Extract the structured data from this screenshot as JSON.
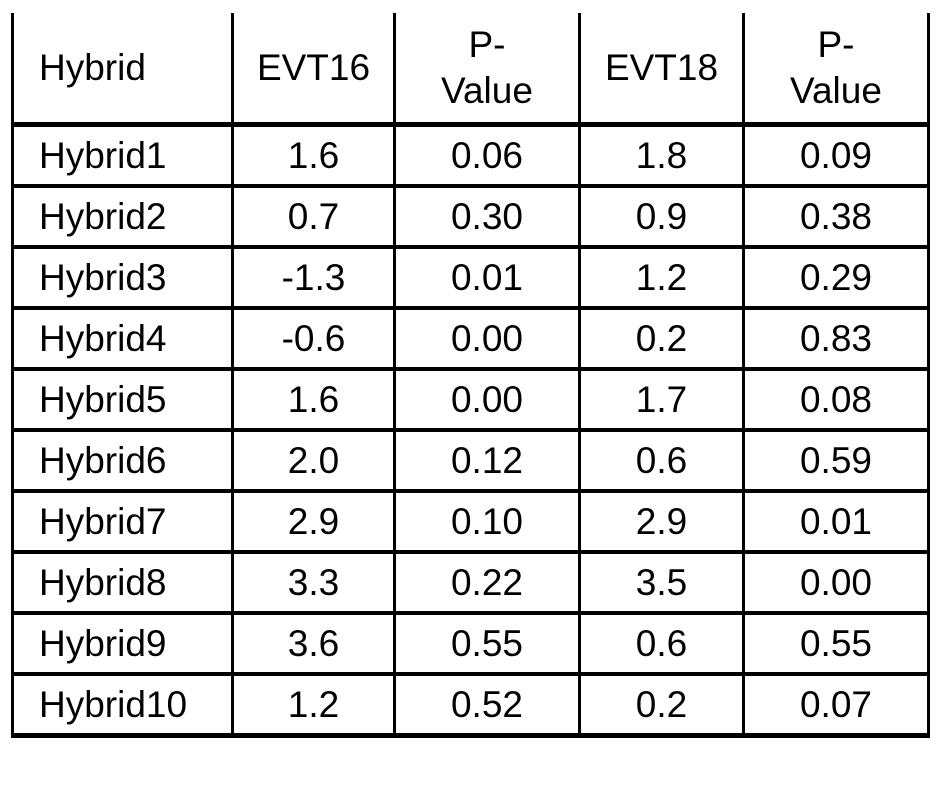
{
  "table": {
    "columns": [
      {
        "key": "hybrid",
        "label": "Hybrid"
      },
      {
        "key": "evt16",
        "label": "EVT16"
      },
      {
        "key": "pvalue16",
        "label": "P-\nValue"
      },
      {
        "key": "evt18",
        "label": "EVT18"
      },
      {
        "key": "pvalue18",
        "label": "P-\nValue"
      }
    ],
    "rows": [
      [
        "Hybrid1",
        "1.6",
        "0.06",
        "1.8",
        "0.09"
      ],
      [
        "Hybrid2",
        "0.7",
        "0.30",
        "0.9",
        "0.38"
      ],
      [
        "Hybrid3",
        "-1.3",
        "0.01",
        "1.2",
        "0.29"
      ],
      [
        "Hybrid4",
        "-0.6",
        "0.00",
        "0.2",
        "0.83"
      ],
      [
        "Hybrid5",
        "1.6",
        "0.00",
        "1.7",
        "0.08"
      ],
      [
        "Hybrid6",
        "2.0",
        "0.12",
        "0.6",
        "0.59"
      ],
      [
        "Hybrid7",
        "2.9",
        "0.10",
        "2.9",
        "0.01"
      ],
      [
        "Hybrid8",
        "3.3",
        "0.22",
        "3.5",
        "0.00"
      ],
      [
        "Hybrid9",
        "3.6",
        "0.55",
        "0.6",
        "0.55"
      ],
      [
        "Hybrid10",
        "1.2",
        "0.52",
        "0.2",
        "0.07"
      ]
    ],
    "colors": {
      "border": "#000000",
      "text": "#000000",
      "background": "#ffffff"
    }
  },
  "chart_data": {
    "type": "table",
    "title": "",
    "columns": [
      "Hybrid",
      "EVT16",
      "P-Value",
      "EVT18",
      "P-Value"
    ],
    "rows": [
      [
        "Hybrid1",
        1.6,
        0.06,
        1.8,
        0.09
      ],
      [
        "Hybrid2",
        0.7,
        0.3,
        0.9,
        0.38
      ],
      [
        "Hybrid3",
        -1.3,
        0.01,
        1.2,
        0.29
      ],
      [
        "Hybrid4",
        -0.6,
        0.0,
        0.2,
        0.83
      ],
      [
        "Hybrid5",
        1.6,
        0.0,
        1.7,
        0.08
      ],
      [
        "Hybrid6",
        2.0,
        0.12,
        0.6,
        0.59
      ],
      [
        "Hybrid7",
        2.9,
        0.1,
        2.9,
        0.01
      ],
      [
        "Hybrid8",
        3.3,
        0.22,
        3.5,
        0.0
      ],
      [
        "Hybrid9",
        3.6,
        0.55,
        0.6,
        0.55
      ],
      [
        "Hybrid10",
        1.2,
        0.52,
        0.2,
        0.07
      ]
    ]
  }
}
